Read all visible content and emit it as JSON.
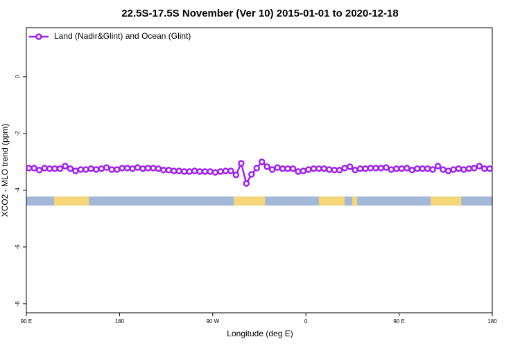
{
  "chart_data": {
    "type": "line",
    "title": "22.5S-17.5S November (Ver 10)   2015-01-01 to 2020-12-18",
    "xlabel": "Longitude (deg E)",
    "ylabel": "XCO2 - MLO trend (ppm)",
    "xlim": [
      90,
      540
    ],
    "xticks": [
      {
        "value": 90,
        "label": "90 E"
      },
      {
        "value": 180,
        "label": "180"
      },
      {
        "value": 270,
        "label": "90 W"
      },
      {
        "value": 360,
        "label": "0"
      },
      {
        "value": 450,
        "label": "90 E"
      },
      {
        "value": 540,
        "label": "180"
      }
    ],
    "ylim": [
      -8.32,
      1.73
    ],
    "yticks": [
      0,
      -2,
      -4,
      -6,
      -8
    ],
    "legend": "top-left",
    "x": [
      92.5,
      97.5,
      102.5,
      107.5,
      112.5,
      117.5,
      122.5,
      127.5,
      132.5,
      137.5,
      142.5,
      147.5,
      152.5,
      157.5,
      162.5,
      167.5,
      172.5,
      177.5,
      182.5,
      187.5,
      192.5,
      197.5,
      202.5,
      207.5,
      212.5,
      217.5,
      222.5,
      227.5,
      232.5,
      237.5,
      242.5,
      247.5,
      252.5,
      257.5,
      262.5,
      267.5,
      272.5,
      277.5,
      282.5,
      287.5,
      292.5,
      297.5,
      302.5,
      307.5,
      312.5,
      317.5,
      322.5,
      327.5,
      332.5,
      337.5,
      342.5,
      347.5,
      352.5,
      357.5,
      362.5,
      367.5,
      372.5,
      377.5,
      382.5,
      387.5,
      392.5,
      397.5,
      402.5,
      407.5,
      412.5,
      417.5,
      422.5,
      427.5,
      432.5,
      437.5,
      442.5,
      447.5,
      452.5,
      457.5,
      462.5,
      467.5,
      472.5,
      477.5,
      482.5,
      487.5,
      492.5,
      497.5,
      502.5,
      507.5,
      512.5,
      517.5,
      522.5,
      527.5,
      532.5,
      537.5
    ],
    "series": [
      {
        "name": "Land (Nadir&Glint) and Ocean (Glint)",
        "color": "#a020f0",
        "values": [
          -3.22,
          -3.22,
          -3.29,
          -3.22,
          -3.24,
          -3.24,
          -3.24,
          -3.15,
          -3.24,
          -3.32,
          -3.27,
          -3.27,
          -3.24,
          -3.27,
          -3.24,
          -3.2,
          -3.27,
          -3.27,
          -3.22,
          -3.22,
          -3.24,
          -3.2,
          -3.24,
          -3.22,
          -3.22,
          -3.24,
          -3.29,
          -3.29,
          -3.32,
          -3.32,
          -3.34,
          -3.34,
          -3.32,
          -3.34,
          -3.34,
          -3.34,
          -3.37,
          -3.34,
          -3.32,
          -3.32,
          -3.46,
          -3.05,
          -3.76,
          -3.44,
          -3.22,
          -3.0,
          -3.17,
          -3.27,
          -3.2,
          -3.24,
          -3.24,
          -3.24,
          -3.34,
          -3.32,
          -3.27,
          -3.24,
          -3.24,
          -3.24,
          -3.27,
          -3.29,
          -3.29,
          -3.22,
          -3.17,
          -3.29,
          -3.24,
          -3.24,
          -3.22,
          -3.22,
          -3.22,
          -3.2,
          -3.27,
          -3.24,
          -3.24,
          -3.22,
          -3.29,
          -3.24,
          -3.24,
          -3.24,
          -3.27,
          -3.15,
          -3.27,
          -3.32,
          -3.27,
          -3.24,
          -3.27,
          -3.24,
          -3.22,
          -3.15,
          -3.24,
          -3.24
        ]
      }
    ],
    "surface_band": {
      "range": [
        -4.22,
        -4.54
      ],
      "ocean_color": "#a3b8d8",
      "land_color": "#f5d77a",
      "land": [
        [
          116.8,
          150.3
        ],
        [
          290.3,
          320.4
        ],
        [
          372.6,
          397.4
        ],
        [
          404.8,
          409.5
        ],
        [
          480.5,
          510
        ]
      ]
    }
  }
}
